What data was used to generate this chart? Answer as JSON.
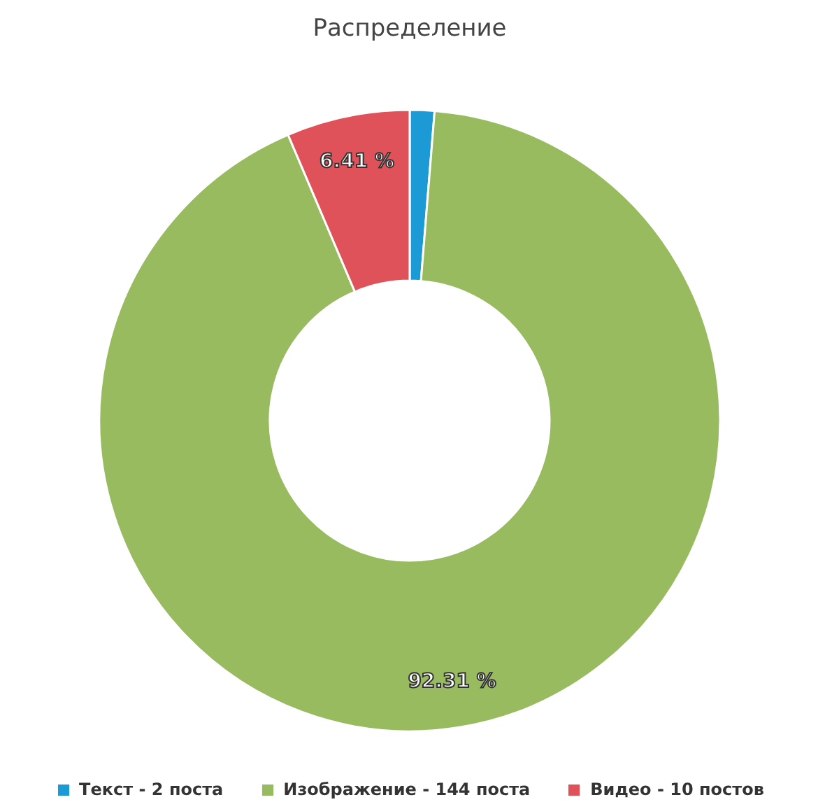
{
  "chart_data": {
    "type": "donut",
    "title": "Распределение",
    "categories": [
      "Текст - 2 поста",
      "Изображение - 144 поста",
      "Видео - 10 постов"
    ],
    "values": [
      1.28,
      92.31,
      6.41
    ],
    "colors": [
      "#1c9ad6",
      "#99bb5f",
      "#e0525a"
    ],
    "value_labels": [
      null,
      "92.31 %",
      "6.41 %"
    ],
    "legend": "bottom"
  }
}
